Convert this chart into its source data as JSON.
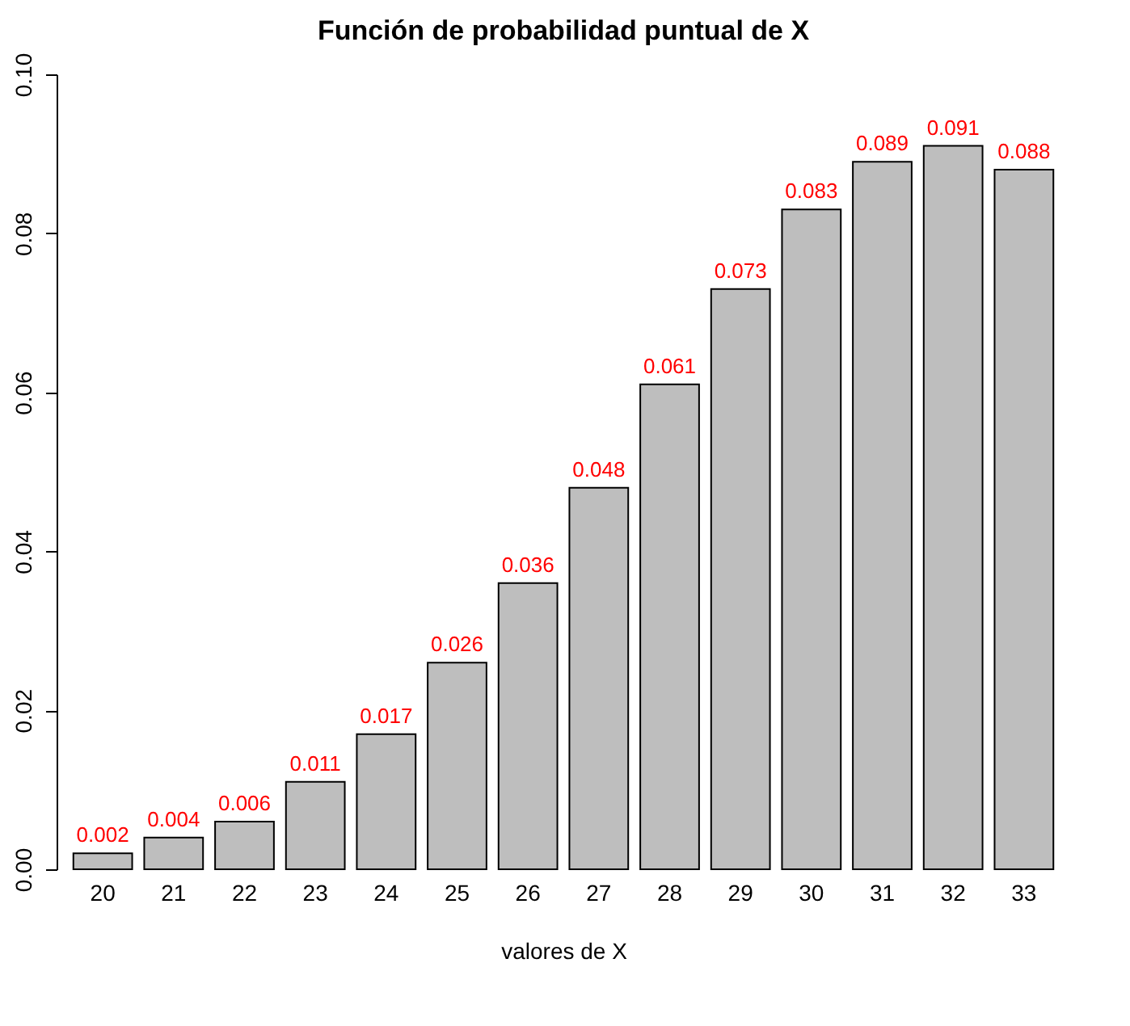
{
  "chart_data": {
    "type": "bar",
    "title": "Función de probabilidad puntual de X",
    "xlabel": "valores de X",
    "categories": [
      "20",
      "21",
      "22",
      "23",
      "24",
      "25",
      "26",
      "27",
      "28",
      "29",
      "30",
      "31",
      "32",
      "33"
    ],
    "values": [
      0.002,
      0.004,
      0.006,
      0.011,
      0.017,
      0.026,
      0.036,
      0.048,
      0.061,
      0.073,
      0.083,
      0.089,
      0.091,
      0.088
    ],
    "color": "#bebebe",
    "data_labels": true,
    "ylim": [
      0,
      0.1
    ],
    "yticks": [
      {
        "value": 0,
        "label": "0.00"
      },
      {
        "value": 0.02,
        "label": "0.02"
      },
      {
        "value": 0.04,
        "label": "0.04"
      },
      {
        "value": 0.06,
        "label": "0.06"
      },
      {
        "value": 0.08,
        "label": "0.08"
      },
      {
        "value": 0.1,
        "label": "0.10"
      }
    ],
    "grid": false
  }
}
